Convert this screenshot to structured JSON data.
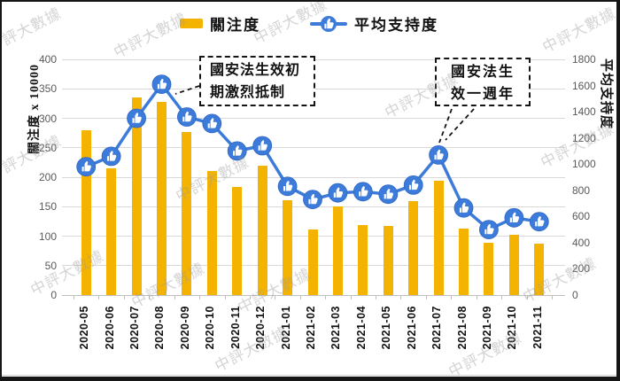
{
  "legend": {
    "bar_label": "關注度",
    "line_label": "平均支持度"
  },
  "icons": {
    "line_marker": "thumbs-up-icon"
  },
  "watermark": {
    "text": "中評大數據"
  },
  "chart_data": {
    "type": "bar+line combo",
    "categories": [
      "2020-05",
      "2020-06",
      "2020-07",
      "2020-08",
      "2020-09",
      "2020-10",
      "2020-11",
      "2020-12",
      "2021-01",
      "2021-02",
      "2021-03",
      "2021-04",
      "2021-05",
      "2021-06",
      "2021-07",
      "2021-08",
      "2021-09",
      "2021-10",
      "2021-11"
    ],
    "series": [
      {
        "name": "關注度",
        "type": "bar",
        "axis": "left",
        "color": "#F5B301",
        "values": [
          280,
          215,
          335,
          328,
          277,
          210,
          184,
          220,
          161,
          112,
          150,
          119,
          118,
          159,
          194,
          113,
          88,
          103,
          87
        ]
      },
      {
        "name": "平均支持度",
        "type": "line",
        "axis": "right",
        "color": "#3D7BDB",
        "marker": "thumbs-up-circle",
        "values": [
          980,
          1060,
          1350,
          1610,
          1360,
          1310,
          1100,
          1140,
          830,
          730,
          780,
          790,
          770,
          840,
          1070,
          665,
          500,
          590,
          560
        ]
      }
    ],
    "left_axis": {
      "title": "關注度 x 10000",
      "min": 0,
      "max": 400,
      "step": 50,
      "ticks": [
        0,
        50,
        100,
        150,
        200,
        250,
        300,
        350,
        400
      ]
    },
    "right_axis": {
      "title": "平均支持度",
      "min": 0,
      "max": 1800,
      "step": 200,
      "ticks": [
        0,
        200,
        400,
        600,
        800,
        1000,
        1200,
        1400,
        1600,
        1800
      ]
    },
    "grid": true,
    "legend_position": "top-center",
    "annotations": [
      {
        "lines": [
          "國安法生效初",
          "期激烈抵制"
        ],
        "points_to": "2020-08"
      },
      {
        "lines": [
          "國安法生",
          "效一週年"
        ],
        "points_to": "2021-07"
      }
    ]
  }
}
